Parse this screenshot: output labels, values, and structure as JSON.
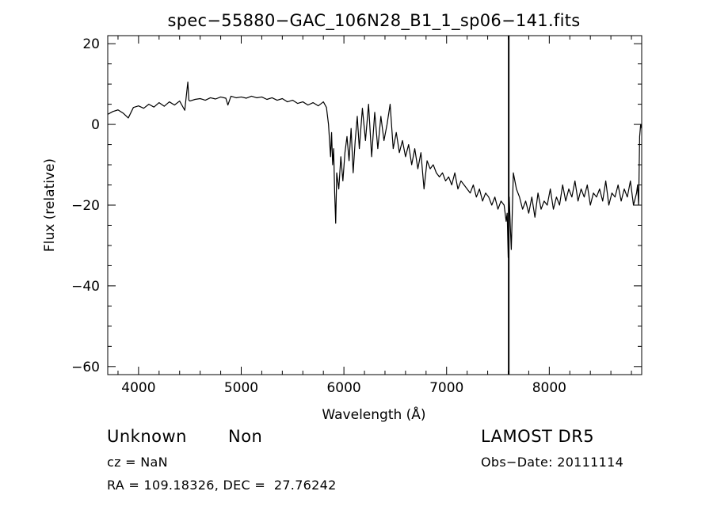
{
  "chart_data": {
    "type": "line",
    "title": "spec−55880−GAC_106N28_B1_1_sp06−141.fits",
    "xlabel": "Wavelength (Å)",
    "ylabel": "Flux (relative)",
    "xlim": [
      3700,
      8900
    ],
    "ylim": [
      -62,
      22
    ],
    "x_ticks": [
      4000,
      5000,
      6000,
      7000,
      8000
    ],
    "x_tick_labels": [
      "4000",
      "5000",
      "6000",
      "7000",
      "8000"
    ],
    "y_ticks": [
      20,
      0,
      -20,
      -40,
      -60
    ],
    "y_tick_labels": [
      "20",
      "0",
      "−20",
      "−40",
      "−60"
    ],
    "grid": false,
    "legend": "none",
    "line_color": "#000000",
    "vertical_line_x": 7605,
    "series": [
      {
        "x": [
          3700,
          3750,
          3800,
          3850,
          3900,
          3950,
          4000,
          4050,
          4100,
          4150,
          4200,
          4250,
          4300,
          4350,
          4400,
          4450,
          4480,
          4490,
          4500,
          4550,
          4600,
          4650,
          4700,
          4750,
          4800,
          4850,
          4870,
          4900,
          4950,
          5000,
          5050,
          5100,
          5150,
          5200,
          5250,
          5300,
          5350,
          5400,
          5450,
          5500,
          5550,
          5600,
          5650,
          5700,
          5750,
          5800,
          5830,
          5850,
          5870,
          5880,
          5890,
          5900,
          5910,
          5920,
          5930,
          5950,
          5970,
          5990,
          6010,
          6030,
          6050,
          6070,
          6090,
          6110,
          6130,
          6150,
          6180,
          6210,
          6240,
          6270,
          6300,
          6330,
          6360,
          6390,
          6420,
          6450,
          6480,
          6510,
          6540,
          6570,
          6600,
          6630,
          6660,
          6690,
          6720,
          6750,
          6780,
          6810,
          6840,
          6870,
          6900,
          6930,
          6960,
          6990,
          7020,
          7050,
          7080,
          7110,
          7140,
          7170,
          7200,
          7230,
          7260,
          7290,
          7320,
          7350,
          7380,
          7410,
          7440,
          7470,
          7500,
          7530,
          7560,
          7580,
          7590,
          7600,
          7610,
          7620,
          7630,
          7650,
          7680,
          7710,
          7740,
          7770,
          7800,
          7830,
          7860,
          7890,
          7920,
          7950,
          7980,
          8010,
          8040,
          8070,
          8100,
          8130,
          8160,
          8190,
          8220,
          8250,
          8280,
          8310,
          8340,
          8370,
          8400,
          8430,
          8460,
          8490,
          8520,
          8550,
          8580,
          8610,
          8640,
          8670,
          8700,
          8730,
          8760,
          8790,
          8820,
          8840,
          8850,
          8860,
          8870,
          8880,
          8890,
          8900
        ],
        "y": [
          2.5,
          3.2,
          3.6,
          2.8,
          1.6,
          4.2,
          4.6,
          4.0,
          5.0,
          4.3,
          5.4,
          4.5,
          5.6,
          4.8,
          5.8,
          3.5,
          10.5,
          6.0,
          5.8,
          6.2,
          6.4,
          6.0,
          6.6,
          6.3,
          6.8,
          6.5,
          4.8,
          7.0,
          6.6,
          6.8,
          6.5,
          7.0,
          6.6,
          6.8,
          6.2,
          6.6,
          6.0,
          6.4,
          5.6,
          6.0,
          5.2,
          5.6,
          4.8,
          5.4,
          4.6,
          5.6,
          4.2,
          0,
          -8,
          -2,
          -10,
          -6,
          -17,
          -24.5,
          -12,
          -16,
          -8,
          -14,
          -7,
          -3,
          -9,
          -1,
          -12,
          -4,
          2,
          -6,
          4,
          -4,
          5,
          -8,
          3,
          -6,
          2,
          -4,
          0,
          5,
          -6,
          -2,
          -7,
          -4,
          -8,
          -5,
          -10,
          -6,
          -11,
          -7,
          -16,
          -9,
          -11,
          -10,
          -12,
          -13,
          -12,
          -14,
          -13,
          -15,
          -12,
          -16,
          -14,
          -15,
          -16,
          -17,
          -15,
          -18,
          -16,
          -19,
          -17,
          -18,
          -20,
          -18,
          -21,
          -19,
          -20,
          -24,
          -22,
          -33,
          -18,
          -25,
          -31,
          -12,
          -16,
          -18,
          -21,
          -19,
          -22,
          -18,
          -23,
          -17,
          -21,
          -19,
          -20,
          -16,
          -21,
          -18,
          -20,
          -15,
          -19,
          -16,
          -18,
          -14,
          -19,
          -16,
          -18,
          -15,
          -20,
          -17,
          -18,
          -16,
          -19,
          -14,
          -20,
          -17,
          -18,
          -15,
          -19,
          -16,
          -18,
          -14,
          -20,
          -18,
          -17,
          -15,
          -20,
          -3,
          0,
          -1
        ]
      }
    ]
  },
  "info": {
    "left_line1_a": "Unknown",
    "left_line1_b": "Non",
    "cz": "cz = NaN",
    "radec": "RA = 109.18326, DEC =  27.76242",
    "survey": "LAMOST DR5",
    "obs_date": "Obs−Date: 20111114"
  }
}
